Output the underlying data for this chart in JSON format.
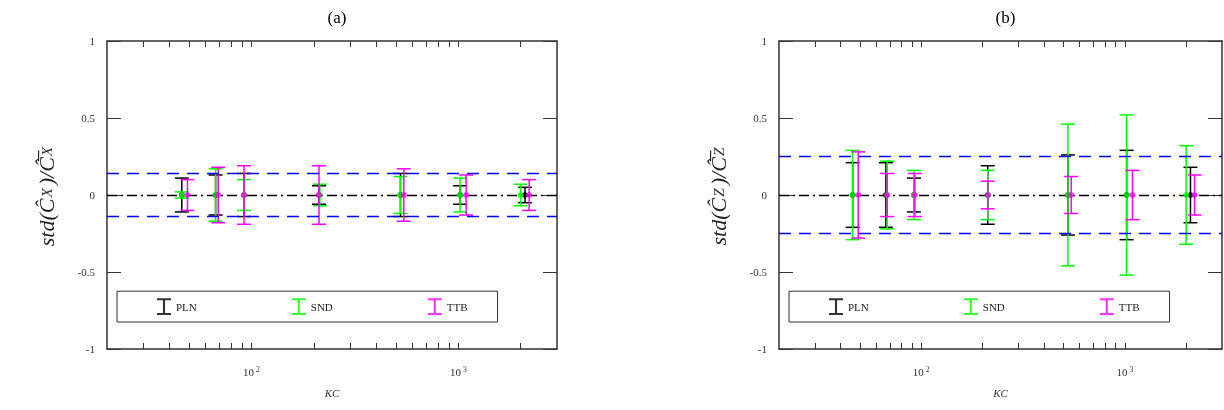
{
  "chart_data": [
    {
      "type": "scatter",
      "title": "(a)",
      "xlabel": "KC",
      "ylabel": "std(Ĉ$_{X}$)/Ĉ̅$_{X}$",
      "log": "x",
      "legend": "bottom",
      "grid": false,
      "xlim": [
        20,
        3000
      ],
      "xticks": [
        {
          "value": 30,
          "label": null
        },
        {
          "value": 40,
          "label": null
        },
        {
          "value": 50,
          "label": null
        },
        {
          "value": 60,
          "label": null
        },
        {
          "value": 70,
          "label": null
        },
        {
          "value": 80,
          "label": null
        },
        {
          "value": 90,
          "label": null
        },
        {
          "value": 100,
          "label": "10$^{2}$"
        },
        {
          "value": 200,
          "label": null
        },
        {
          "value": 300,
          "label": null
        },
        {
          "value": 400,
          "label": null
        },
        {
          "value": 500,
          "label": null
        },
        {
          "value": 600,
          "label": null
        },
        {
          "value": 700,
          "label": null
        },
        {
          "value": 800,
          "label": null
        },
        {
          "value": 900,
          "label": null
        },
        {
          "value": 1000,
          "label": "10$^{3}$"
        },
        {
          "value": 2000,
          "label": null
        }
      ],
      "ylim": [
        -1,
        1
      ],
      "yticks": [
        -1,
        -0.5,
        0,
        0.5,
        1
      ],
      "ref_lines": [
        {
          "axis": "y",
          "value": 0,
          "color": "#000000",
          "line_style": "dashdot"
        },
        {
          "axis": "y",
          "value": 0.14,
          "color": "#0000ff",
          "line_style": "dashed"
        },
        {
          "axis": "y",
          "value": -0.14,
          "color": "#0000ff",
          "line_style": "dashed"
        }
      ],
      "series": [
        {
          "name": "PLN",
          "color": "#000000",
          "x": [
            46,
            67,
            92,
            212,
            525,
            1020,
            2100
          ],
          "values": [
            0,
            0,
            0,
            0,
            0,
            0,
            0
          ],
          "errors": [
            0.11,
            0.13,
            0.14,
            0.06,
            0.14,
            0.06,
            0.05
          ]
        },
        {
          "name": "SND",
          "color": "#00ff00",
          "x": [
            46,
            67,
            92,
            214,
            525,
            1020,
            2000
          ],
          "values": [
            0,
            0,
            0,
            0,
            0,
            0,
            0
          ],
          "errors": [
            0.02,
            0.17,
            0.1,
            0.07,
            0.12,
            0.11,
            0.07
          ]
        },
        {
          "name": "TTB",
          "color": "#ff00ff",
          "x": [
            49,
            69,
            92,
            212,
            545,
            1090,
            2200
          ],
          "values": [
            0,
            0,
            0,
            0,
            0,
            0,
            0
          ],
          "errors": [
            0.1,
            0.18,
            0.19,
            0.19,
            0.17,
            0.13,
            0.1
          ]
        }
      ]
    },
    {
      "type": "scatter",
      "title": "(b)",
      "xlabel": "KC",
      "ylabel": "std(Ĉ$_{Z}$)/Ĉ̅$_{Z}$",
      "log": "x",
      "legend": "bottom",
      "grid": false,
      "xlim": [
        20,
        3000
      ],
      "xticks": [
        {
          "value": 30,
          "label": null
        },
        {
          "value": 40,
          "label": null
        },
        {
          "value": 50,
          "label": null
        },
        {
          "value": 60,
          "label": null
        },
        {
          "value": 70,
          "label": null
        },
        {
          "value": 80,
          "label": null
        },
        {
          "value": 90,
          "label": null
        },
        {
          "value": 100,
          "label": "10$^{2}$"
        },
        {
          "value": 200,
          "label": null
        },
        {
          "value": 300,
          "label": null
        },
        {
          "value": 400,
          "label": null
        },
        {
          "value": 500,
          "label": null
        },
        {
          "value": 600,
          "label": null
        },
        {
          "value": 700,
          "label": null
        },
        {
          "value": 800,
          "label": null
        },
        {
          "value": 900,
          "label": null
        },
        {
          "value": 1000,
          "label": "10$^{3}$"
        },
        {
          "value": 2000,
          "label": null
        }
      ],
      "ylim": [
        -1,
        1
      ],
      "yticks": [
        -1,
        -0.5,
        0,
        0.5,
        1
      ],
      "ref_lines": [
        {
          "axis": "y",
          "value": 0,
          "color": "#000000",
          "line_style": "dashdot"
        },
        {
          "axis": "y",
          "value": 0.25,
          "color": "#0000ff",
          "line_style": "dashed"
        },
        {
          "axis": "y",
          "value": -0.25,
          "color": "#0000ff",
          "line_style": "dashed"
        }
      ],
      "series": [
        {
          "name": "PLN",
          "color": "#000000",
          "x": [
            46,
            67,
            92,
            212,
            525,
            1020,
            2100
          ],
          "values": [
            0,
            0,
            0,
            0,
            0,
            0,
            0
          ],
          "errors": [
            0.21,
            0.21,
            0.11,
            0.19,
            0.26,
            0.29,
            0.18
          ]
        },
        {
          "name": "SND",
          "color": "#00ff00",
          "x": [
            46,
            68,
            92,
            212,
            525,
            1020,
            2000
          ],
          "values": [
            0,
            0,
            0,
            0,
            0,
            0,
            0
          ],
          "errors": [
            0.29,
            0.22,
            0.16,
            0.16,
            0.46,
            0.52,
            0.32
          ]
        },
        {
          "name": "TTB",
          "color": "#ff00ff",
          "x": [
            49,
            68,
            93,
            212,
            545,
            1090,
            2200
          ],
          "values": [
            0,
            0,
            0,
            0,
            0,
            0,
            0
          ],
          "errors": [
            0.28,
            0.14,
            0.14,
            0.09,
            0.12,
            0.16,
            0.13
          ]
        }
      ]
    }
  ]
}
